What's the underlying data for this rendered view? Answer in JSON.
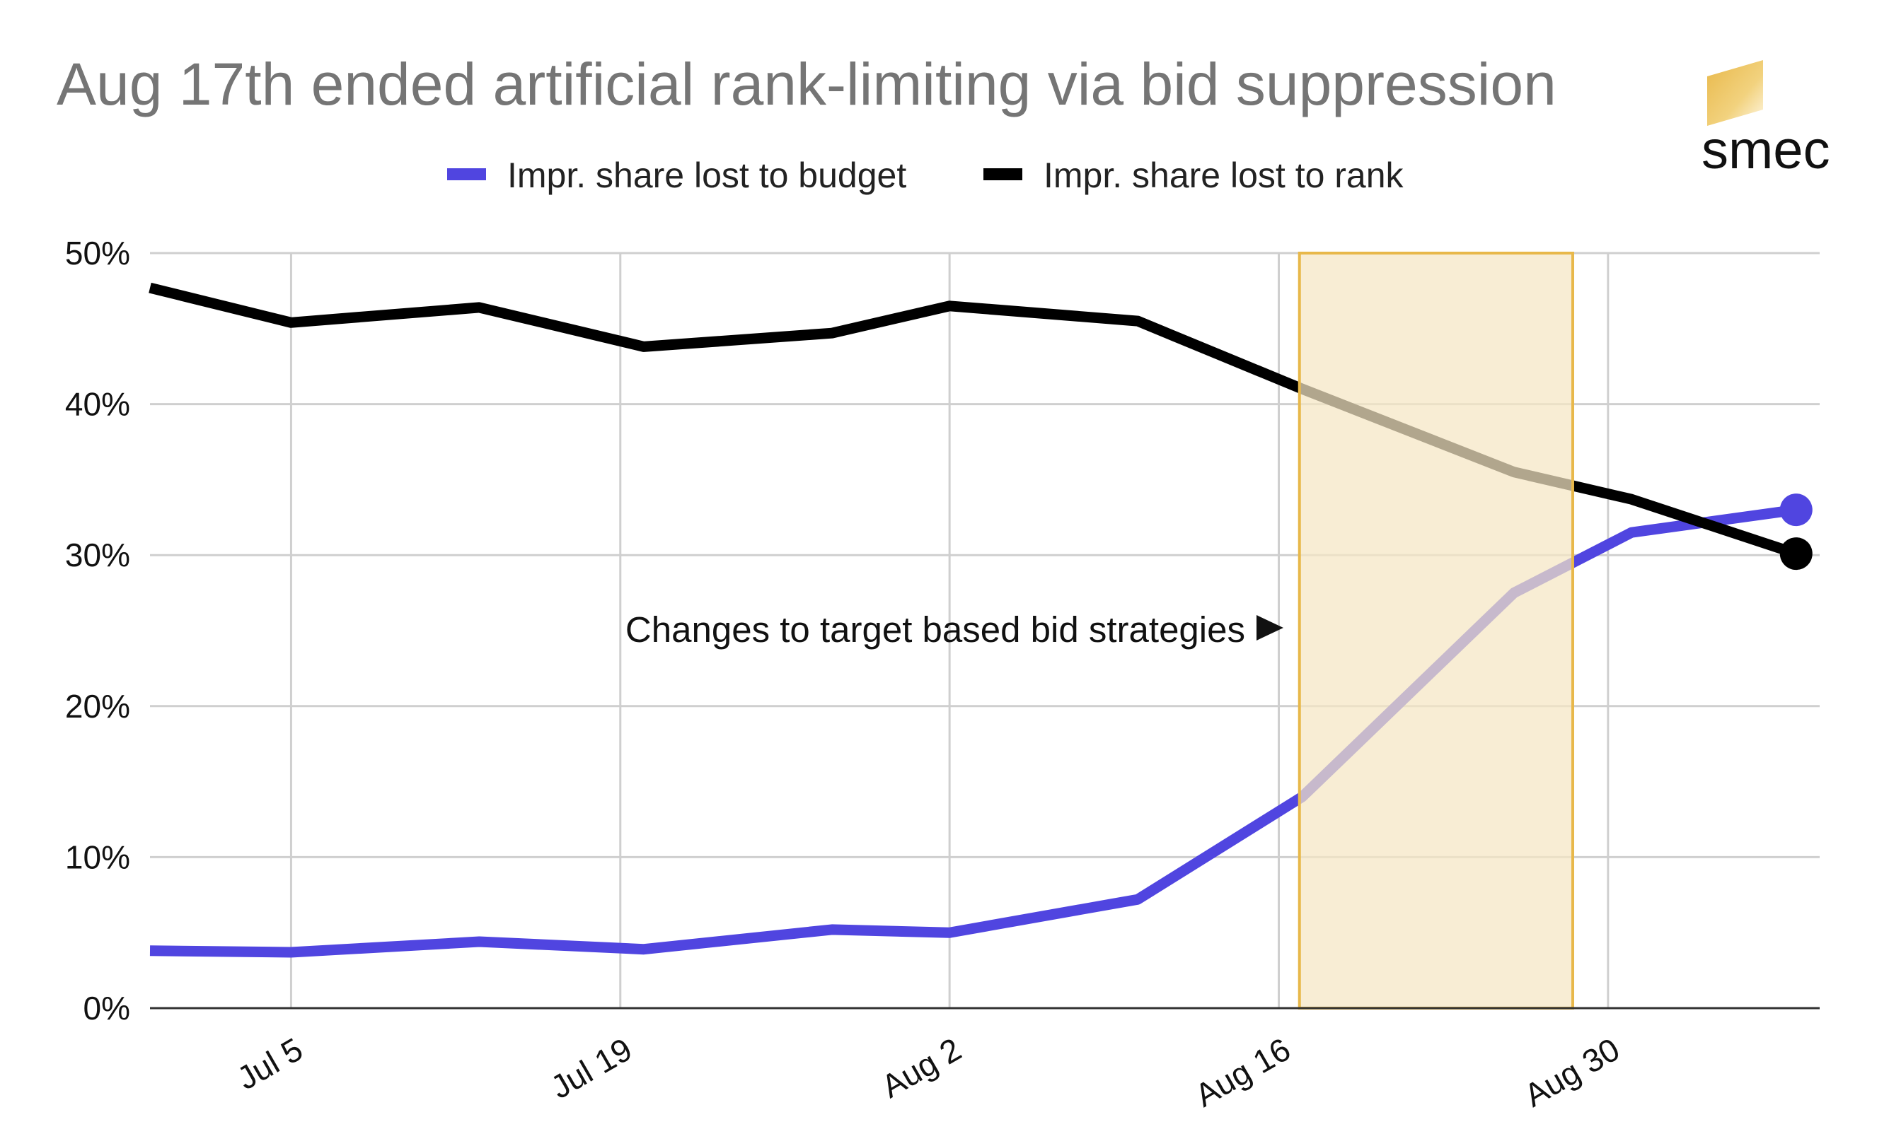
{
  "brand": {
    "name": "smec",
    "logo_color": "#e8b84a"
  },
  "legend": {
    "position": "top-center",
    "items": [
      {
        "label": "Impr. share lost to budget",
        "color": "#5045e0"
      },
      {
        "label": "Impr. share lost to rank",
        "color": "#000000"
      }
    ]
  },
  "annotation": {
    "text": "Changes to target based bid strategies",
    "arrow_glyph": "▶",
    "highlight_from": "Aug 17",
    "highlight_to": "Aug 28",
    "highlight_fill": "#f5e6c4",
    "highlight_stroke": "#e8b84a"
  },
  "chart_data": {
    "type": "line",
    "title": "Aug 17th ended artificial rank-limiting via bid suppression",
    "xlabel": "",
    "ylabel": "",
    "x_tick_labels": [
      "Jul 5",
      "Jul 19",
      "Aug 2",
      "Aug 16",
      "Aug 30"
    ],
    "x_tick_days": [
      4,
      18,
      32,
      46,
      60
    ],
    "y_tick_labels": [
      "0%",
      "10%",
      "20%",
      "30%",
      "40%",
      "50%"
    ],
    "y_ticks": [
      0,
      10,
      20,
      30,
      40,
      50
    ],
    "ylim": [
      0,
      50
    ],
    "x_range_days": [
      -2,
      69
    ],
    "x_days": [
      -2,
      4,
      12,
      19,
      27,
      32,
      40,
      47,
      56,
      61,
      68
    ],
    "x_dates": [
      "Jun 29",
      "Jul 5",
      "Jul 13",
      "Jul 20",
      "Jul 28",
      "Aug 2",
      "Aug 10",
      "Aug 17",
      "Aug 26",
      "Aug 31",
      "Sep 7"
    ],
    "grid": true,
    "legend": "top",
    "series": [
      {
        "name": "Impr. share lost to budget",
        "color": "#5045e0",
        "values": [
          3.8,
          3.7,
          4.4,
          3.9,
          5.2,
          5.0,
          7.2,
          14.0,
          27.5,
          31.5,
          33.0
        ],
        "end_marker": true
      },
      {
        "name": "Impr. share lost to rank",
        "color": "#000000",
        "values": [
          47.7,
          45.4,
          46.4,
          43.8,
          44.7,
          46.5,
          45.5,
          41.0,
          35.5,
          33.7,
          30.1
        ],
        "end_marker": true
      }
    ]
  }
}
